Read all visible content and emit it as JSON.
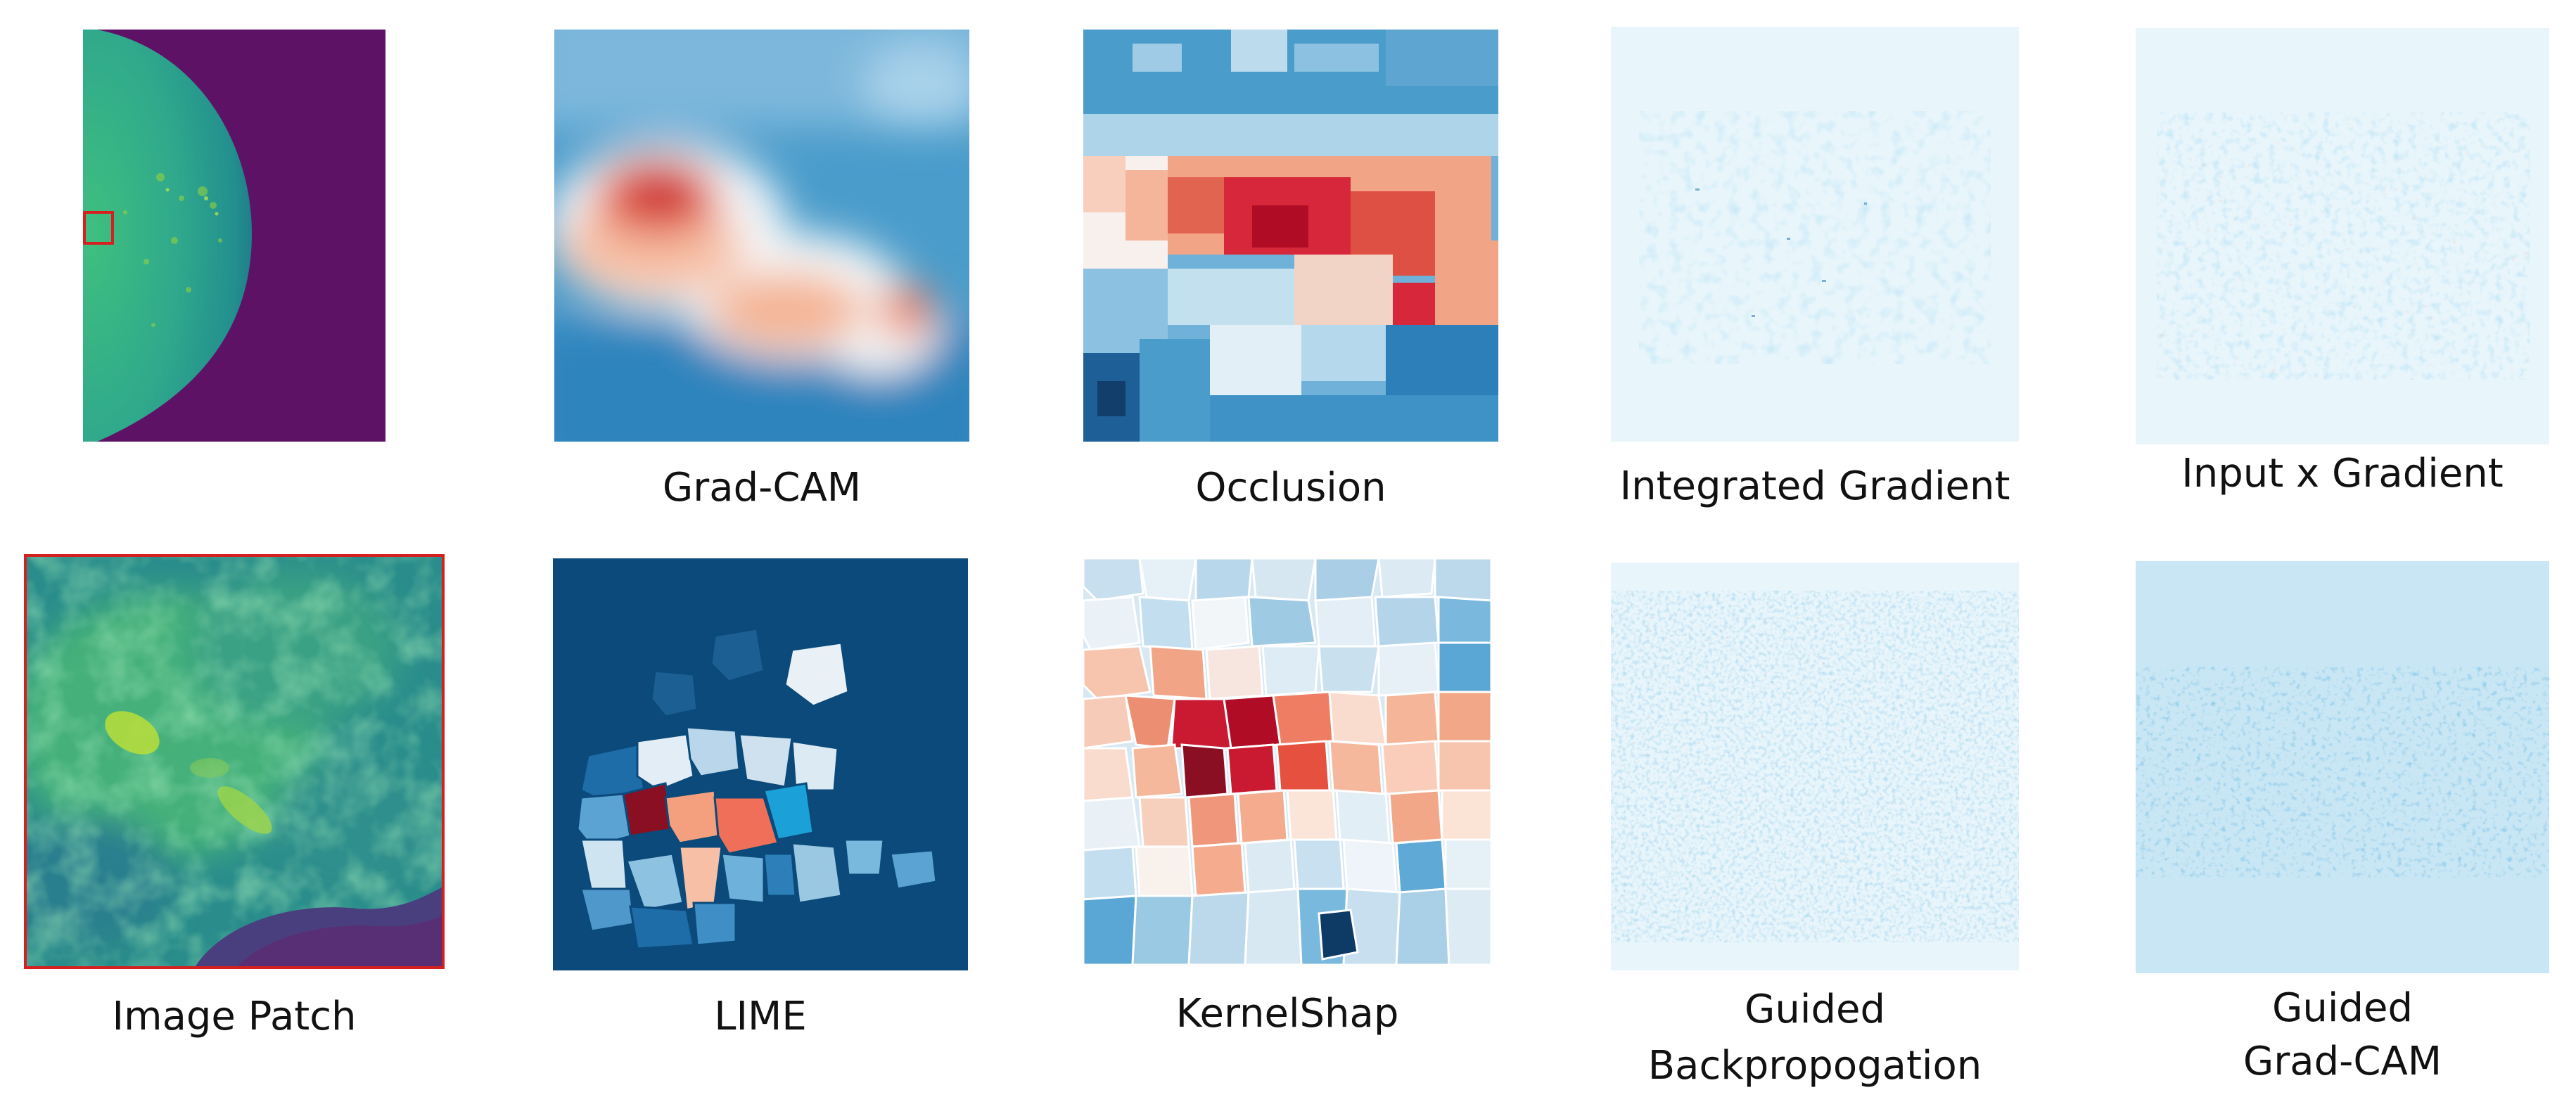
{
  "figure": {
    "captions": {
      "grad_cam": "Grad-CAM",
      "occlusion": "Occlusion",
      "integrated_gradient": "Integrated Gradient",
      "input_x_gradient": "Input x Gradient",
      "image_patch": "Image Patch",
      "lime": "LIME",
      "kernelshap": "KernelShap",
      "guided_backprop_line1": "Guided",
      "guided_backprop_line2": "Backpropogation",
      "guided_gradcam_line1": "Guided",
      "guided_gradcam_line2": "Grad-CAM"
    },
    "colors": {
      "viridis_background": "#5e1266",
      "breast_tissue": "#2fae8c",
      "highlight_box": "#d62020",
      "heat_red": "#c8102e",
      "heat_blue": "#1f78b4",
      "lime_background": "#0b4a7a",
      "map_background": "#e8f5fb"
    }
  }
}
